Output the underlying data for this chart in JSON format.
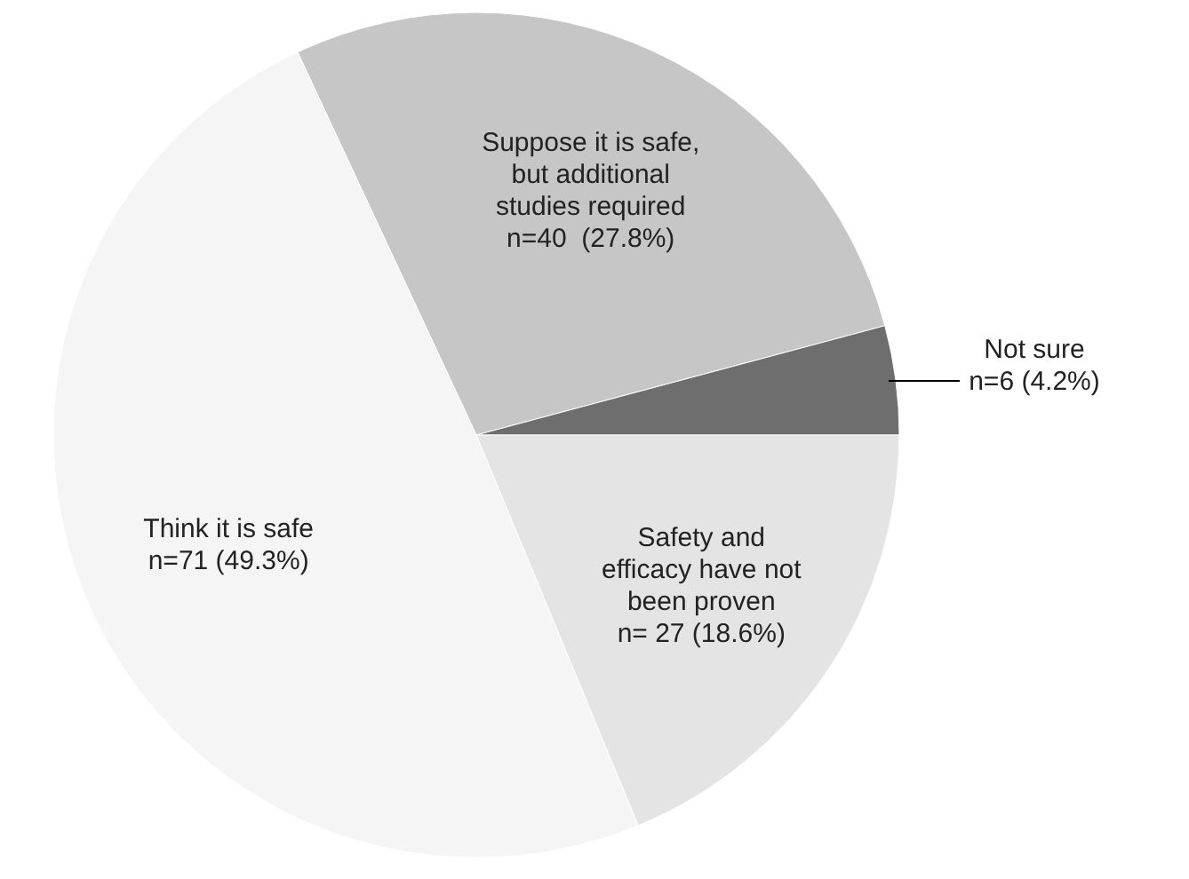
{
  "chart_data": {
    "type": "pie",
    "categories": [
      "Suppose it is safe,\nbut additional\nstudies required",
      "Not sure",
      "Safety and\nefficacy have not\nbeen proven",
      "Think it is safe"
    ],
    "values": [
      40,
      6,
      27,
      71
    ],
    "value_labels": [
      "n=40  (27.8%)",
      "n=6 (4.2%)",
      "n= 27 (18.6%)",
      "n=71 (49.3%)"
    ],
    "colors": [
      "#c6c6c6",
      "#6e6e6e",
      "#e4e4e4",
      "#f5f5f5"
    ]
  }
}
